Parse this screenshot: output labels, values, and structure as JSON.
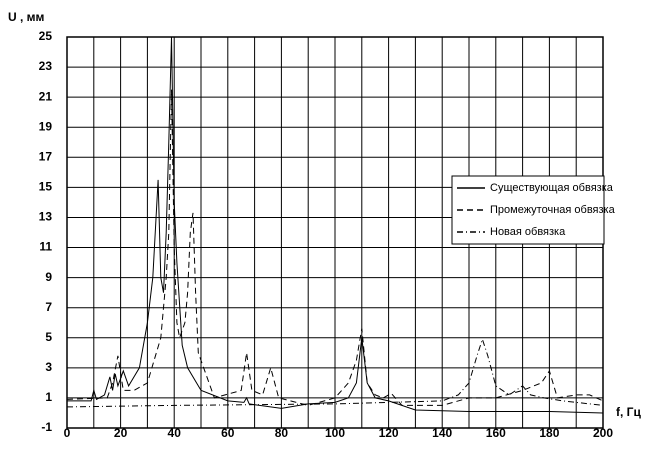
{
  "chart_data": {
    "type": "line",
    "ylabel": "U , мм",
    "xlabel": "f, Гц",
    "xlim": [
      0,
      200
    ],
    "ylim": [
      -1,
      25
    ],
    "xticks": [
      0,
      {
        "value": 10,
        "label": null
      },
      20,
      {
        "value": 30,
        "label": null
      },
      40,
      {
        "value": 50,
        "label": null
      },
      60,
      {
        "value": 70,
        "label": null
      },
      80,
      {
        "value": 90,
        "label": null
      },
      100,
      {
        "value": 110,
        "label": null
      },
      120,
      {
        "value": 130,
        "label": null
      },
      140,
      {
        "value": 150,
        "label": null
      },
      160,
      {
        "value": 170,
        "label": null
      },
      180,
      {
        "value": 190,
        "label": null
      },
      200
    ],
    "yticks": [
      -1,
      1,
      3,
      5,
      7,
      9,
      11,
      13,
      15,
      17,
      19,
      21,
      23,
      25
    ],
    "grid": true,
    "legend": "right",
    "series": [
      {
        "name": "Существующая обвязка",
        "color": "#000000",
        "dash": "none",
        "x": [
          0,
          9,
          10,
          11,
          14,
          16,
          17,
          18,
          19,
          21,
          23,
          27,
          30,
          32,
          34,
          35,
          36,
          37,
          38,
          39,
          40,
          41,
          43,
          45,
          50,
          60,
          66,
          67,
          68,
          80,
          90,
          100,
          105,
          108,
          110,
          112,
          115,
          120,
          130,
          150,
          180,
          200
        ],
        "values": [
          0.8,
          0.8,
          1.5,
          0.9,
          1.2,
          2.4,
          1.5,
          2.6,
          1.8,
          2.8,
          1.8,
          3,
          6,
          9,
          15.5,
          9,
          8,
          12,
          18,
          25,
          14,
          10,
          4.5,
          3,
          1.5,
          0.8,
          0.7,
          1,
          0.6,
          0.3,
          0.6,
          0.7,
          1,
          2,
          5,
          2,
          1,
          0.8,
          0.2,
          0.1,
          0.1,
          0
        ]
      },
      {
        "name": "Промежуточная обвязка",
        "color": "#000000",
        "dash": "6,4",
        "x": [
          0,
          15,
          17,
          19,
          21,
          25,
          30,
          35,
          37,
          38,
          39,
          40,
          41,
          42,
          44,
          45,
          46,
          47,
          48,
          49,
          55,
          65,
          67,
          69,
          73,
          76,
          79,
          90,
          100,
          105,
          108,
          110,
          112,
          115,
          118,
          121,
          125,
          140,
          150,
          160,
          170,
          177,
          180,
          183,
          190,
          195,
          200
        ],
        "values": [
          0.9,
          1,
          2,
          3.8,
          1.5,
          1.5,
          2,
          5,
          9,
          12,
          21.5,
          11,
          6,
          5,
          6,
          8,
          12,
          13.3,
          8,
          4,
          1,
          1.5,
          4,
          1.5,
          1.2,
          3,
          1,
          0.5,
          1,
          2,
          3.5,
          5.6,
          2,
          1.2,
          1,
          1.3,
          0.5,
          0.5,
          1,
          1,
          1.5,
          2,
          2.8,
          1,
          1.2,
          1.2,
          0.8
        ]
      },
      {
        "name": "Новая обвязка",
        "color": "#000000",
        "dash": "6,3,1,3",
        "x": [
          0,
          40,
          100,
          140,
          146,
          150,
          153,
          155,
          157,
          160,
          165,
          170,
          173,
          178,
          185,
          200
        ],
        "values": [
          0.4,
          0.5,
          0.6,
          0.8,
          1.2,
          2,
          3.8,
          4.9,
          3.8,
          1.8,
          1.2,
          1.8,
          1.2,
          1,
          0.8,
          0.5
        ]
      }
    ]
  }
}
